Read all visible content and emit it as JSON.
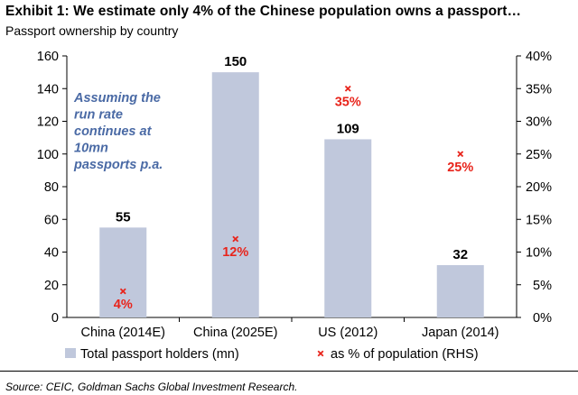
{
  "header": {
    "title": "Exhibit 1: We estimate only 4% of the Chinese population owns a passport…",
    "subtitle": "Passport ownership by country"
  },
  "footer": {
    "source": "Source: CEIC, Goldman Sachs Global Investment Research."
  },
  "colors": {
    "bar": "#c0c8dc",
    "marker": "#e8241b",
    "note": "#4a6aa5",
    "axis": "#000000"
  },
  "chart_data": {
    "type": "bar",
    "title": "Exhibit 1: We estimate only 4% of the Chinese population owns a passport…",
    "subtitle": "Passport ownership by country",
    "categories": [
      "China (2014E)",
      "China (2025E)",
      "US (2012)",
      "Japan (2014)"
    ],
    "series": [
      {
        "name": "Total passport holders (mn)",
        "type": "bar",
        "axis": "left",
        "values": [
          55,
          150,
          109,
          32
        ],
        "labels": [
          "55",
          "150",
          "109",
          "32"
        ]
      },
      {
        "name": "as % of population (RHS)",
        "type": "scatter",
        "marker": "x",
        "axis": "right",
        "values": [
          4,
          12,
          35,
          25
        ],
        "labels": [
          "4%",
          "12%",
          "35%",
          "25%"
        ]
      }
    ],
    "ylim_left": [
      0,
      160
    ],
    "yticks_left": [
      "0",
      "20",
      "40",
      "60",
      "80",
      "100",
      "120",
      "140",
      "160"
    ],
    "ylim_right": [
      0,
      40
    ],
    "yticks_right": [
      "0%",
      "5%",
      "10%",
      "15%",
      "20%",
      "25%",
      "30%",
      "35%",
      "40%"
    ],
    "annotation": {
      "lines": [
        "Assuming the",
        "run rate",
        "continues at",
        "10mn",
        "passports p.a."
      ]
    },
    "legend": {
      "position": "bottom",
      "entries": [
        "Total passport holders (mn)",
        "as % of population (RHS)"
      ]
    }
  }
}
